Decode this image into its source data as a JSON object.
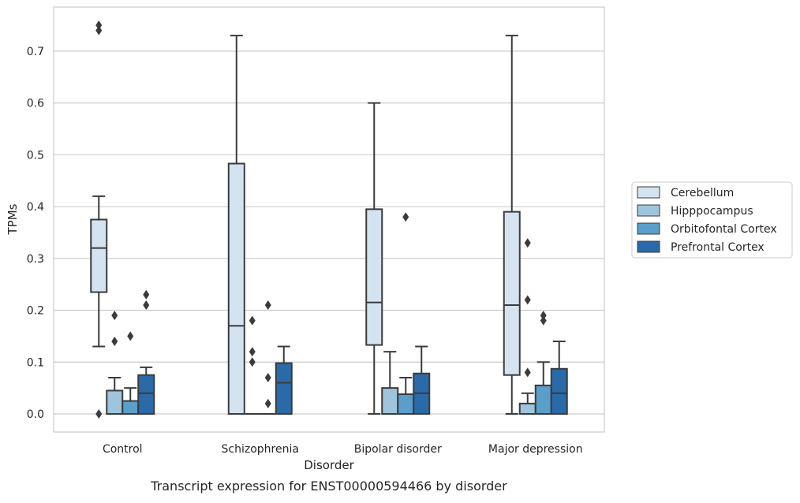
{
  "chart_data": {
    "type": "box",
    "title": "",
    "caption": "Transcript expression for ENST00000594466 by disorder",
    "xlabel": "Disorder",
    "ylabel": "TPMs",
    "ylim": [
      -0.035,
      0.785
    ],
    "yticks": [
      "0.0",
      "0.1",
      "0.2",
      "0.3",
      "0.4",
      "0.5",
      "0.6",
      "0.7"
    ],
    "categories": [
      "Control",
      "Schizophrenia",
      "Bipolar disorder",
      "Major depression"
    ],
    "grid": true,
    "legend_position": "right",
    "series": [
      {
        "name": "Cerebellum",
        "color": "#d4e3f0",
        "boxes": [
          {
            "min": 0.13,
            "q1": 0.235,
            "median": 0.32,
            "q3": 0.375,
            "max": 0.42,
            "outliers": [
              0.0,
              0.74,
              0.75
            ]
          },
          {
            "min": 0.0,
            "q1": 0.0,
            "median": 0.17,
            "q3": 0.483,
            "max": 0.73,
            "outliers": []
          },
          {
            "min": 0.0,
            "q1": 0.133,
            "median": 0.215,
            "q3": 0.395,
            "max": 0.6,
            "outliers": []
          },
          {
            "min": 0.0,
            "q1": 0.075,
            "median": 0.21,
            "q3": 0.39,
            "max": 0.73,
            "outliers": []
          }
        ]
      },
      {
        "name": "Hipppocampus",
        "color": "#9ec5dd",
        "boxes": [
          {
            "min": 0.0,
            "q1": 0.0,
            "median": 0.0,
            "q3": 0.045,
            "max": 0.07,
            "outliers": [
              0.14,
              0.19
            ]
          },
          {
            "min": 0.0,
            "q1": 0.0,
            "median": 0.0,
            "q3": 0.0,
            "max": 0.0,
            "outliers": [
              0.1,
              0.12,
              0.18
            ]
          },
          {
            "min": 0.0,
            "q1": 0.0,
            "median": 0.0,
            "q3": 0.05,
            "max": 0.12,
            "outliers": []
          },
          {
            "min": 0.0,
            "q1": 0.0,
            "median": 0.0,
            "q3": 0.02,
            "max": 0.04,
            "outliers": [
              0.08,
              0.22,
              0.33
            ]
          }
        ]
      },
      {
        "name": "Orbitofontal Cortex",
        "color": "#5a9ec9",
        "boxes": [
          {
            "min": 0.0,
            "q1": 0.0,
            "median": 0.0,
            "q3": 0.025,
            "max": 0.05,
            "outliers": [
              0.15
            ]
          },
          {
            "min": 0.0,
            "q1": 0.0,
            "median": 0.0,
            "q3": 0.0,
            "max": 0.0,
            "outliers": [
              0.02,
              0.07,
              0.21
            ]
          },
          {
            "min": 0.0,
            "q1": 0.0,
            "median": 0.0,
            "q3": 0.038,
            "max": 0.07,
            "outliers": [
              0.38
            ]
          },
          {
            "min": 0.0,
            "q1": 0.0,
            "median": 0.0,
            "q3": 0.055,
            "max": 0.1,
            "outliers": [
              0.18,
              0.19
            ]
          }
        ]
      },
      {
        "name": "Prefrontal Cortex",
        "color": "#2b6aa8",
        "boxes": [
          {
            "min": 0.0,
            "q1": 0.0,
            "median": 0.04,
            "q3": 0.075,
            "max": 0.09,
            "outliers": [
              0.21,
              0.23
            ]
          },
          {
            "min": 0.0,
            "q1": 0.0,
            "median": 0.06,
            "q3": 0.098,
            "max": 0.13,
            "outliers": []
          },
          {
            "min": 0.0,
            "q1": 0.0,
            "median": 0.04,
            "q3": 0.078,
            "max": 0.13,
            "outliers": []
          },
          {
            "min": 0.0,
            "q1": 0.0,
            "median": 0.04,
            "q3": 0.087,
            "max": 0.14,
            "outliers": []
          }
        ]
      }
    ]
  }
}
